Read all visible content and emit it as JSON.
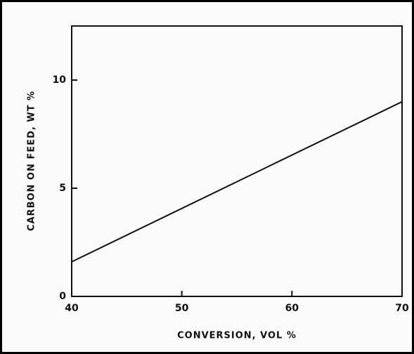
{
  "chart_data": {
    "type": "line",
    "x_label": "CONVERSION, VOL %",
    "y_label": "CARBON ON FEED, WT %",
    "x": [
      40,
      70
    ],
    "series": [
      {
        "color": "#111111",
        "values": [
          1.6,
          9.0
        ]
      }
    ],
    "xlim": [
      40,
      70
    ],
    "xticks": [
      40,
      50,
      60,
      70
    ],
    "ylim": [
      0,
      12.5
    ],
    "yticks": [
      0,
      5,
      10
    ],
    "grid": false
  }
}
